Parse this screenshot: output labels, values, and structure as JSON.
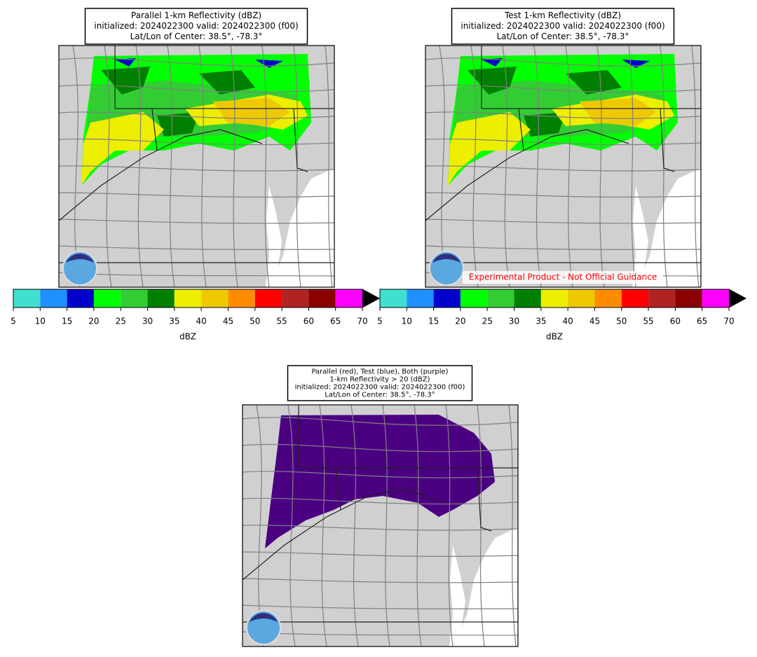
{
  "panels": [
    {
      "title": [
        "Parallel 1-km Reflectivity (dBZ)",
        "initialized: 2024022300 valid: 2024022300 (f00)",
        "Lat/Lon of Center: 38.5°, -78.3°"
      ]
    },
    {
      "title": [
        "Test 1-km Reflectivity (dBZ)",
        "initialized: 2024022300 valid: 2024022300 (f00)",
        "Lat/Lon of Center: 38.5°, -78.3°"
      ],
      "note": "Experimental Product - Not Official Guidance"
    },
    {
      "title": [
        "Parallel (red), Test (blue), Both (purple)",
        "1-km Reflectivity > 20 (dBZ)",
        "initialized: 2024022300 valid: 2024022300 (f00)",
        "Lat/Lon of Center: 38.5°, -78.3°"
      ]
    }
  ],
  "colorbar": {
    "label": "dBZ",
    "ticks": [
      5,
      10,
      15,
      20,
      25,
      30,
      35,
      40,
      45,
      50,
      55,
      60,
      65,
      70
    ],
    "colors": [
      "#40e0d0",
      "#1e90ff",
      "#0000cd",
      "#00ff00",
      "#32cd32",
      "#008000",
      "#eeee00",
      "#eec900",
      "#ff8c00",
      "#ff0000",
      "#b22222",
      "#8b0000",
      "#ff00ff"
    ],
    "extend_color": "#000000"
  }
}
